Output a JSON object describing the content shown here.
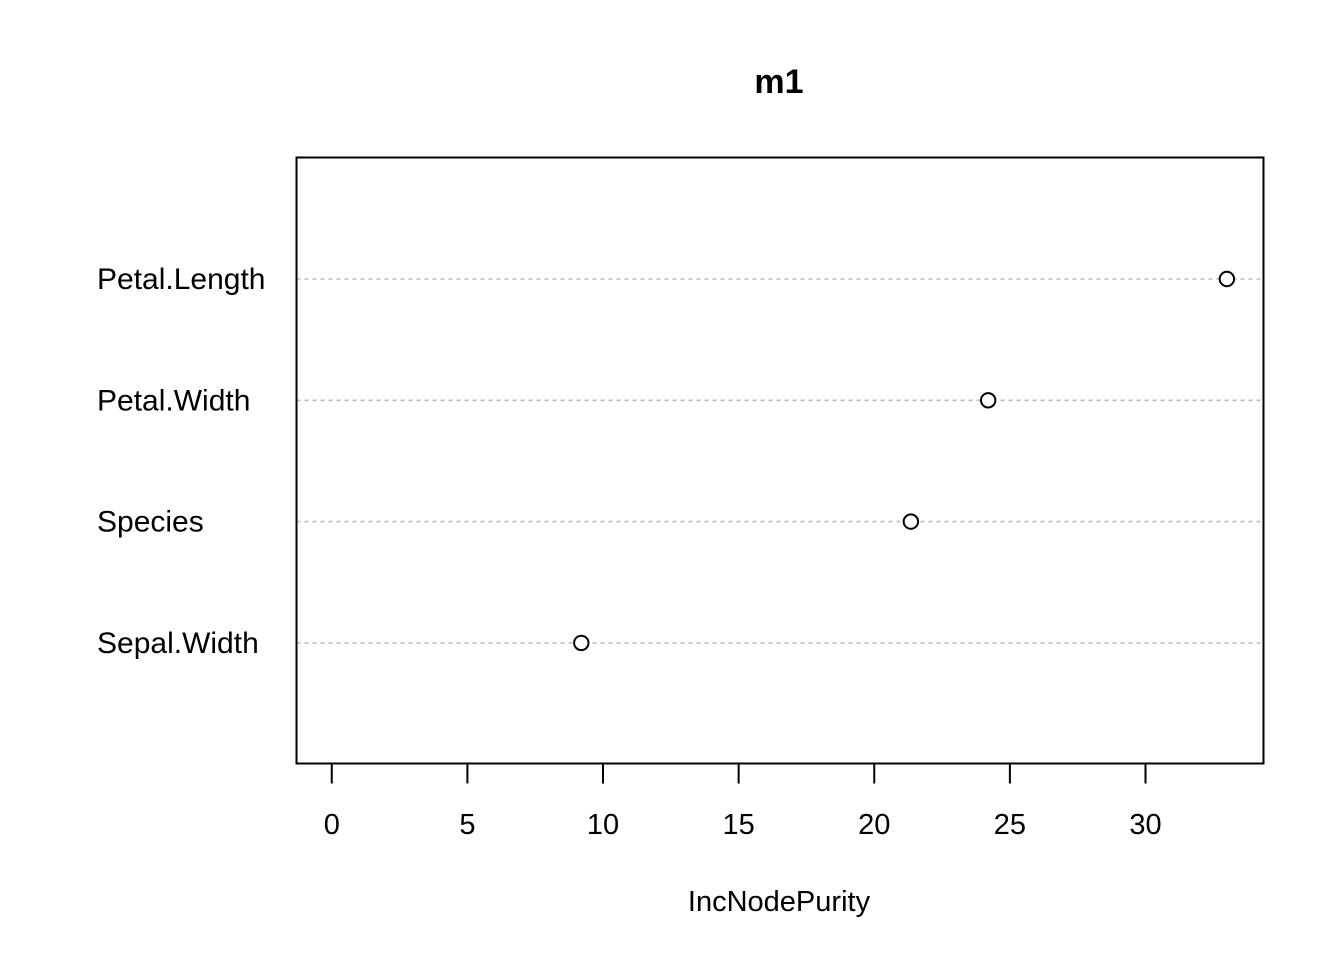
{
  "chart_data": {
    "type": "scatter",
    "subtype": "dotchart",
    "title": "m1",
    "xlabel": "IncNodePurity",
    "ylabel": "",
    "categories": [
      "Petal.Length",
      "Petal.Width",
      "Species",
      "Sepal.Width"
    ],
    "values": [
      33.0,
      24.2,
      21.35,
      9.2
    ],
    "xlim": [
      -1.3,
      34.35
    ],
    "x_ticks": [
      0,
      5,
      10,
      15,
      20,
      25,
      30
    ],
    "x_tick_labels": [
      "0",
      "5",
      "10",
      "15",
      "20",
      "25",
      "30"
    ],
    "grid": "dotted horizontal lines per category",
    "legend": "none",
    "colors": {
      "points": "#000000",
      "grid": "#bebebe",
      "frame": "#000000"
    }
  }
}
